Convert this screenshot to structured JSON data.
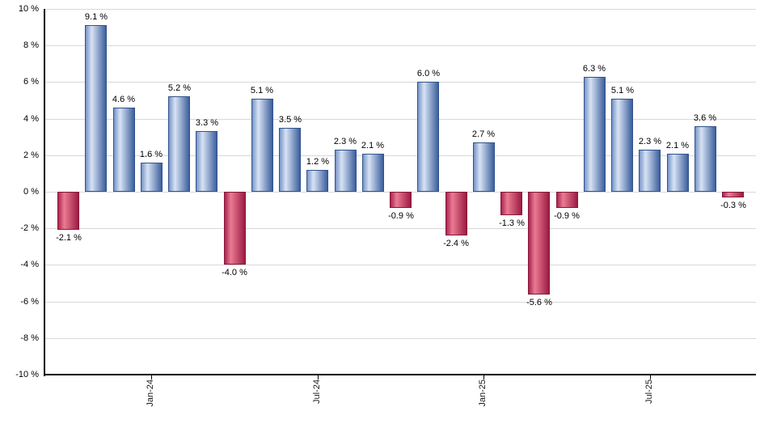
{
  "chart_data": {
    "type": "bar",
    "title": "",
    "unit": "%",
    "values": [
      -2.1,
      9.1,
      4.6,
      1.6,
      5.2,
      3.3,
      -4.0,
      5.1,
      3.5,
      1.2,
      2.3,
      2.1,
      -0.9,
      6.0,
      -2.4,
      2.7,
      -1.3,
      -5.6,
      -0.9,
      6.3,
      5.1,
      2.3,
      2.1,
      3.6,
      -0.3
    ],
    "bar_labels": [
      "-2.1 %",
      "9.1 %",
      "4.6 %",
      "1.6 %",
      "5.2 %",
      "3.3 %",
      "-4.0 %",
      "5.1 %",
      "3.5 %",
      "1.2 %",
      "2.3 %",
      "2.1 %",
      "-0.9 %",
      "6.0 %",
      "-2.4 %",
      "2.7 %",
      "-1.3 %",
      "-5.6 %",
      "-0.9 %",
      "6.3 %",
      "5.1 %",
      "2.3 %",
      "2.1 %",
      "3.6 %",
      "-0.3 %"
    ],
    "x_ticks": [
      {
        "label": "Jan-24",
        "bar_index": 3
      },
      {
        "label": "Jul-24",
        "bar_index": 9
      },
      {
        "label": "Jan-25",
        "bar_index": 15
      },
      {
        "label": "Jul-25",
        "bar_index": 21
      }
    ],
    "y_ticks": [
      {
        "label": "10 %",
        "value": 10
      },
      {
        "label": "8 %",
        "value": 8
      },
      {
        "label": "6 %",
        "value": 6
      },
      {
        "label": "4 %",
        "value": 4
      },
      {
        "label": "2 %",
        "value": 2
      },
      {
        "label": "0 %",
        "value": 0
      },
      {
        "label": "-2 %",
        "value": -2
      },
      {
        "label": "-4 %",
        "value": -4
      },
      {
        "label": "-6 %",
        "value": -6
      },
      {
        "label": "-8 %",
        "value": -8
      },
      {
        "label": "-10 %",
        "value": -10
      }
    ],
    "ylim": [
      -10,
      10
    ],
    "grid": true,
    "legend_position": "none",
    "colors": {
      "positive_left": "#7694c7",
      "positive_light": "#d8e3f4",
      "positive_right": "#3c5f9d",
      "positive_border": "#31538c",
      "negative_left": "#aa2450",
      "negative_light": "#ea7b93",
      "negative_right": "#9c1b42",
      "negative_border": "#871739",
      "gridline": "#d8d8d8",
      "axis": "#000000",
      "text": "#000000"
    }
  }
}
